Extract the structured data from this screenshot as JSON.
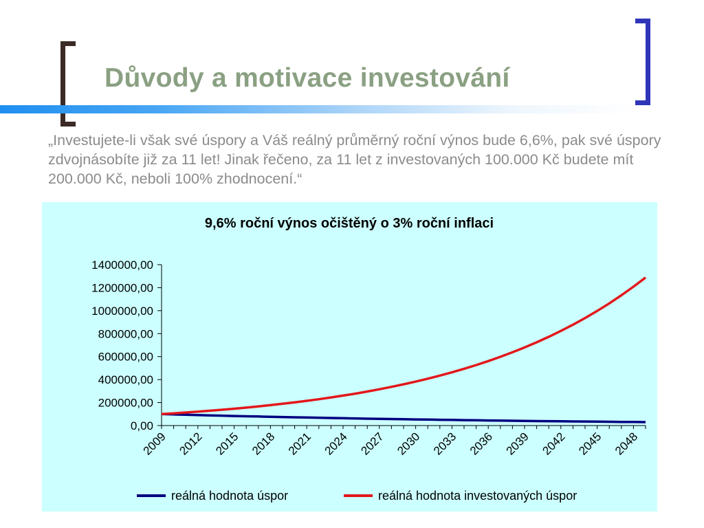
{
  "slide": {
    "title": "Důvody a motivace investování",
    "quote": "„Investujete-li však své úspory a Váš reálný průměrný roční výnos bude 6,6%, pak své úspory zdvojnásobíte již za 11 let! Jinak řečeno, za 11 let z investovaných 100.000 Kč budete mít 200.000 Kč, neboli 100% zhodnocení.“"
  },
  "colors": {
    "title": "#8aa082",
    "quote": "#8b8b8b",
    "bracket_left": "#3b2a26",
    "bracket_right": "#2f35b8",
    "chart_background": "#ccffff",
    "series_savings": "#000080",
    "series_invested": "#e3171b"
  },
  "chart_data": {
    "type": "line",
    "title": "9,6% roční výnos očištěný o 3% roční inflaci",
    "xlabel": "",
    "ylabel": "",
    "x": [
      2009,
      2010,
      2011,
      2012,
      2013,
      2014,
      2015,
      2016,
      2017,
      2018,
      2019,
      2020,
      2021,
      2022,
      2023,
      2024,
      2025,
      2026,
      2027,
      2028,
      2029,
      2030,
      2031,
      2032,
      2033,
      2034,
      2035,
      2036,
      2037,
      2038,
      2039,
      2040,
      2041,
      2042,
      2043,
      2044,
      2045,
      2046,
      2047,
      2048,
      2049
    ],
    "x_tick_labels": [
      "2009",
      "2012",
      "2015",
      "2018",
      "2021",
      "2024",
      "2027",
      "2030",
      "2033",
      "2036",
      "2039",
      "2042",
      "2045",
      "2048"
    ],
    "ylim": [
      0,
      1400000
    ],
    "y_tick_labels": [
      "0,00",
      "200000,00",
      "400000,00",
      "600000,00",
      "800000,00",
      "1000000,00",
      "1200000,00",
      "1400000,00"
    ],
    "grid": false,
    "legend_position": "bottom",
    "series": [
      {
        "name": "reálná hodnota úspor",
        "color": "#000080",
        "values": [
          100000,
          97000,
          94000,
          91000,
          88000,
          86000,
          83000,
          81000,
          79000,
          76000,
          74000,
          72000,
          70000,
          68000,
          66000,
          64000,
          62000,
          60000,
          58000,
          57000,
          55000,
          53000,
          52000,
          50000,
          49000,
          47000,
          46000,
          44000,
          43000,
          42000,
          40000,
          39000,
          38000,
          37000,
          36000,
          35000,
          34000,
          33000,
          32000,
          31000,
          30000
        ]
      },
      {
        "name": "reálná hodnota investovaných úspor",
        "color": "#e3171b",
        "values": [
          100000,
          106600,
          113600,
          121100,
          129100,
          137600,
          146700,
          156400,
          166700,
          177700,
          189400,
          201900,
          215200,
          229400,
          244600,
          260700,
          277900,
          296300,
          315800,
          336600,
          358800,
          382500,
          407800,
          434700,
          463300,
          493900,
          526500,
          561300,
          598300,
          637800,
          679900,
          724700,
          772600,
          823600,
          877900,
          935800,
          997600,
          1063400,
          1133600,
          1208400,
          1288100
        ]
      }
    ]
  }
}
